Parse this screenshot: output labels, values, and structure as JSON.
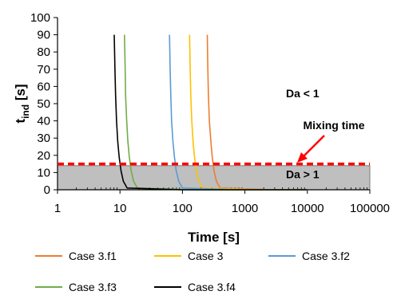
{
  "chart_data": {
    "type": "line",
    "title": "",
    "xlabel": "Time [s]",
    "ylabel_main": "t",
    "ylabel_sub": "ind",
    "ylabel_unit": " [s]",
    "x_scale": "log",
    "xlim": [
      1,
      100000
    ],
    "ylim": [
      0,
      100
    ],
    "x_ticks": [
      1,
      10,
      100,
      1000,
      10000,
      100000
    ],
    "x_tick_labels": [
      "1",
      "10",
      "100",
      "1000",
      "10000",
      "100000"
    ],
    "y_ticks": [
      0,
      10,
      20,
      30,
      40,
      50,
      60,
      70,
      80,
      90,
      100
    ],
    "y_tick_labels": [
      "0",
      "10",
      "20",
      "30",
      "40",
      "50",
      "60",
      "70",
      "80",
      "90",
      "100"
    ],
    "grid": false,
    "legend_position": "bottom",
    "series": [
      {
        "name": "Case 3.f1",
        "color": "#ED7D31",
        "x": [
          250,
          255,
          260,
          270,
          285,
          300,
          320,
          350,
          400,
          3000,
          10000
        ],
        "y": [
          90,
          70,
          55,
          40,
          28,
          19,
          11,
          5,
          1,
          0,
          0
        ]
      },
      {
        "name": "Case 3",
        "color": "#FFC000",
        "x": [
          130,
          133,
          136,
          141,
          148,
          156,
          167,
          183,
          209,
          1600,
          10000
        ],
        "y": [
          90,
          70,
          55,
          40,
          28,
          19,
          11,
          5,
          1,
          0,
          0
        ]
      },
      {
        "name": "Case 3.f2",
        "color": "#5B9BD5",
        "x": [
          62,
          63.5,
          65,
          67,
          70.5,
          74.5,
          79.5,
          87,
          100,
          800,
          10000
        ],
        "y": [
          90,
          70,
          55,
          40,
          28,
          19,
          11,
          5,
          1,
          0,
          0
        ]
      },
      {
        "name": "Case 3.f3",
        "color": "#70AD47",
        "x": [
          11.8,
          12.1,
          12.3,
          12.8,
          13.4,
          14.1,
          15.1,
          16.5,
          19,
          140,
          10000
        ],
        "y": [
          90,
          70,
          55,
          40,
          28,
          19,
          11,
          5,
          1,
          0,
          0
        ]
      },
      {
        "name": "Case 3.f4",
        "color": "#000000",
        "x": [
          8.1,
          8.3,
          8.5,
          8.8,
          9.2,
          9.7,
          10.4,
          11.3,
          13,
          100,
          10000
        ],
        "y": [
          90,
          70,
          55,
          40,
          28,
          19,
          11,
          5,
          1,
          0,
          0
        ]
      }
    ],
    "shaded_region": {
      "y_from": 0,
      "y_to": 14,
      "color": "#BFBFBF"
    },
    "mixing_line": {
      "y": 15,
      "color": "#FF0000",
      "label": "Mixing time"
    },
    "annotations": [
      {
        "text": "Da < 1",
        "x": 10000,
        "y": 56
      },
      {
        "text": "Da > 1",
        "x": 10000,
        "y": 9
      }
    ]
  }
}
